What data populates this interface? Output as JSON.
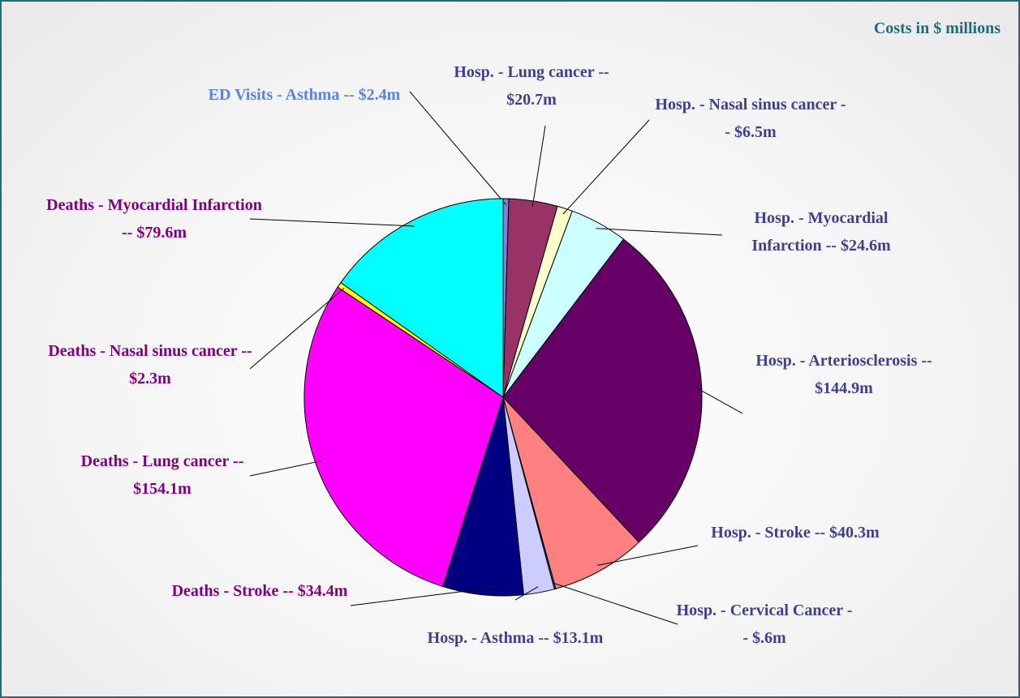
{
  "chart_data": {
    "type": "pie",
    "title": "Costs in $ millions",
    "categories": [
      "ED Visits - Asthma --",
      "Hosp. - Lung cancer --",
      "Hosp. - Nasal sinus cancer --",
      "Hosp. - Myocardial Infarction --",
      "Hosp. - Arteriosclerosis --",
      "Hosp. - Stroke --",
      "Hosp. - Cervical Cancer --",
      "Hosp. - Asthma --",
      "Deaths - Stroke --",
      "Deaths - Lung cancer --",
      "Deaths - Nasal sinus cancer --",
      "Deaths - Myocardial Infarction --"
    ],
    "values": [
      2.4,
      20.7,
      6.5,
      24.6,
      144.9,
      40.3,
      0.6,
      13.1,
      34.4,
      154.1,
      2.3,
      79.6
    ],
    "value_labels": [
      "$2.4m",
      "$20.7m",
      "$6.5m",
      "$24.6m",
      "$144.9m",
      "$40.3m",
      "$.6m",
      "$13.1m",
      "$34.4m",
      "$154.1m",
      "$2.3m",
      "$79.6m"
    ],
    "colors": [
      "#7f7fe0",
      "#993366",
      "#ffffcc",
      "#ccffff",
      "#660066",
      "#ff8080",
      "#0066cc",
      "#ccccff",
      "#000080",
      "#ff00ff",
      "#ffff00",
      "#00ffff"
    ],
    "label_colors": [
      "#5b82e8",
      "#3f3f8f",
      "#3f3f8f",
      "#3f3f8f",
      "#3f3f8f",
      "#3f3f8f",
      "#3f3f8f",
      "#3f3f8f",
      "#800080",
      "#800080",
      "#800080",
      "#800080"
    ]
  }
}
